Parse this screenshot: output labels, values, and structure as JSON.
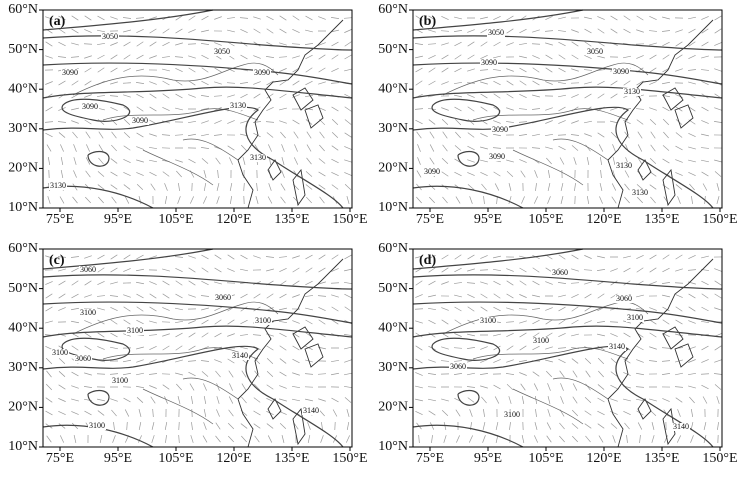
{
  "axes": {
    "longitude_labels": [
      "75°E",
      "95°E",
      "105°E",
      "120°E",
      "135°E",
      "150°E"
    ],
    "latitude_labels": [
      "60°N",
      "50°N",
      "40°N",
      "30°N",
      "20°N",
      "10°N"
    ]
  },
  "panels": [
    {
      "label": "(a)",
      "contour_labels": [
        "3050",
        "3050",
        "3090",
        "3090",
        "3090",
        "3090",
        "3130",
        "3130",
        "3130"
      ]
    },
    {
      "label": "(b)",
      "contour_labels": [
        "3050",
        "3050",
        "3090",
        "3090",
        "3130",
        "3090",
        "3090",
        "3090",
        "3130",
        "3130"
      ]
    },
    {
      "label": "(c)",
      "contour_labels": [
        "3060",
        "3060",
        "3100",
        "3100",
        "3100",
        "3100",
        "3060",
        "3100",
        "3140",
        "3100",
        "3140"
      ]
    },
    {
      "label": "(d)",
      "contour_labels": [
        "3060",
        "3060",
        "3100",
        "3100",
        "3100",
        "3060",
        "3140",
        "3100",
        "3140"
      ]
    }
  ]
}
